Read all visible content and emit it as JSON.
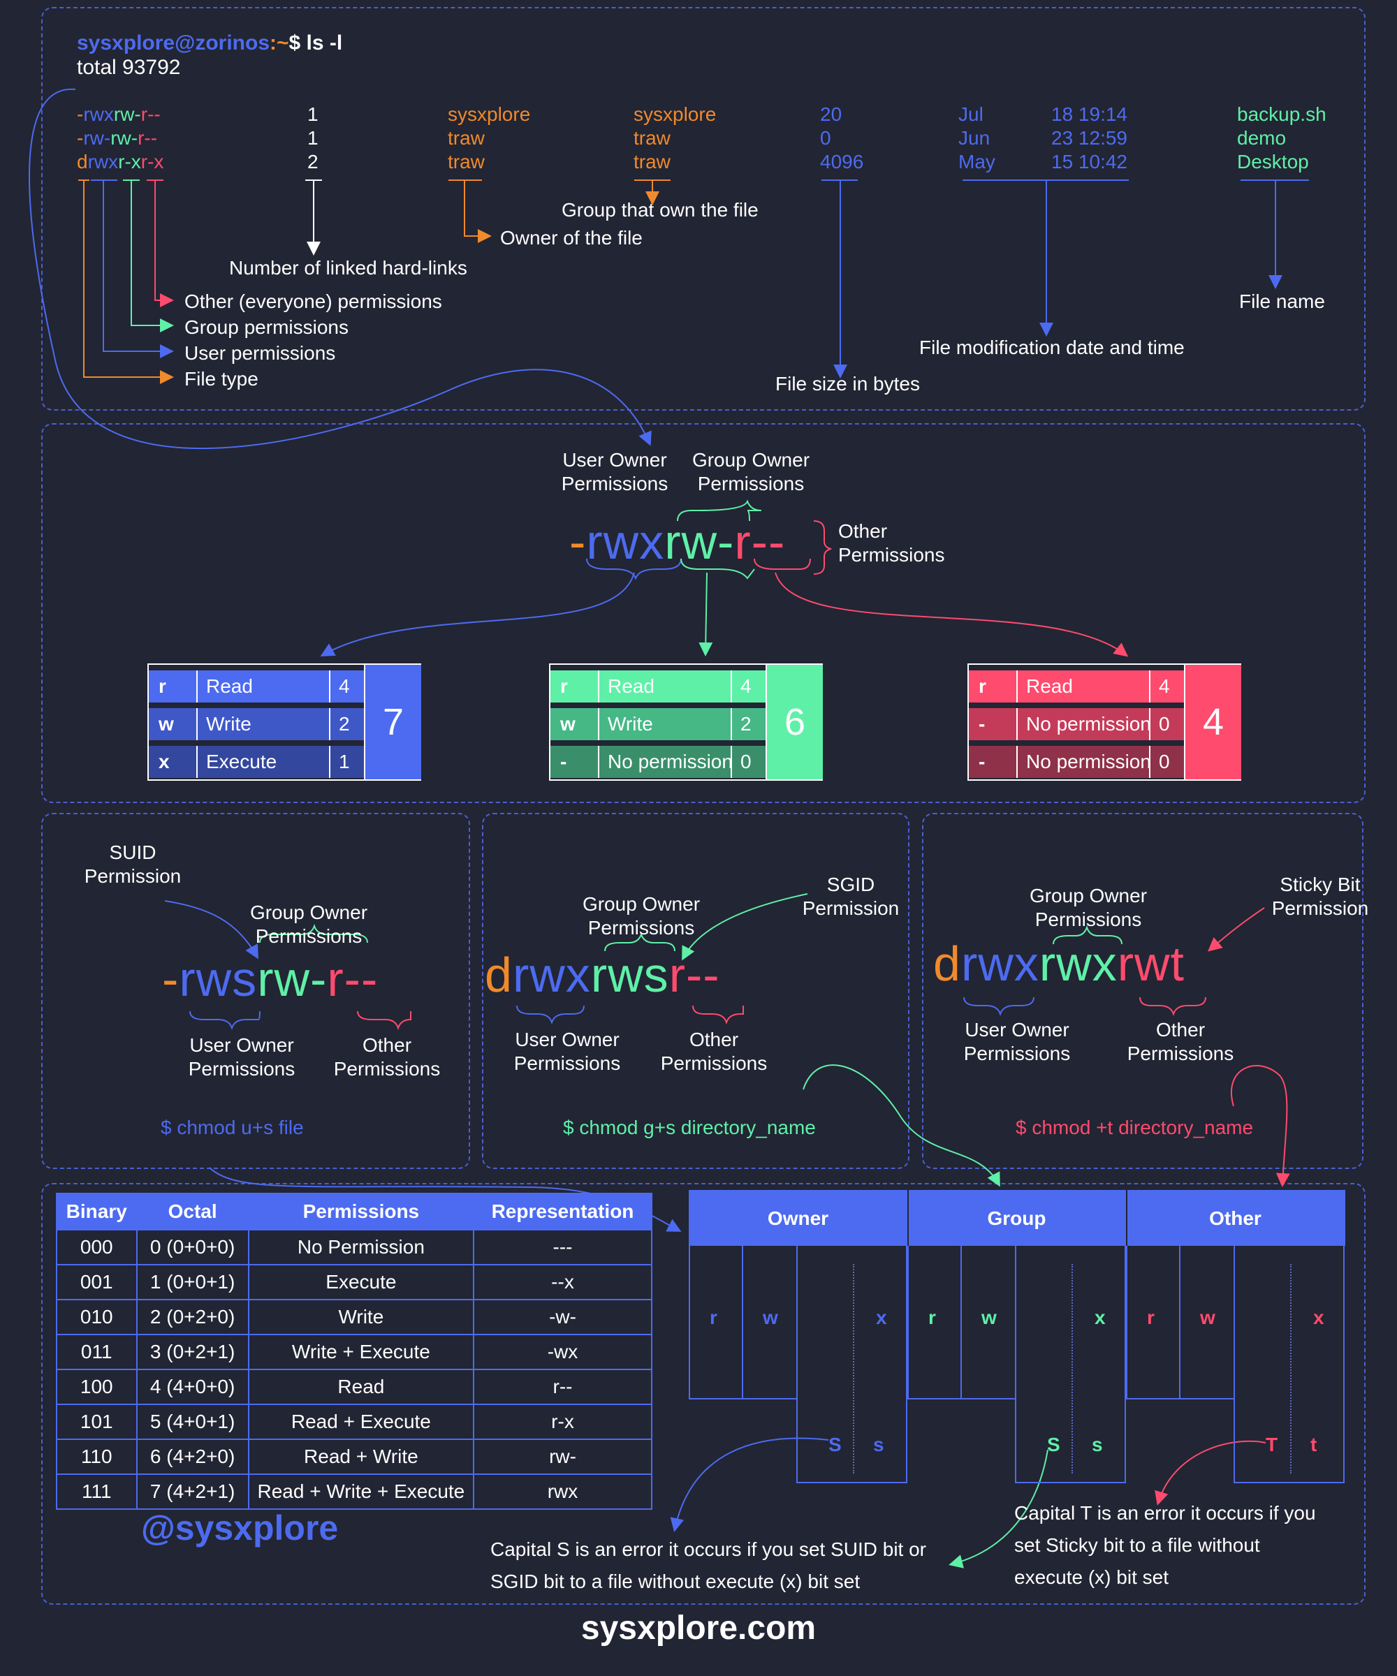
{
  "terminal": {
    "prompt_user": "sysxplore@zorinos",
    "prompt_sep": ":~",
    "prompt_cmd": "$ ls -l",
    "total": "total 93792",
    "rows": [
      {
        "type": "-",
        "user": "rwx",
        "group": "rw-",
        "other": "r--",
        "links": "1",
        "owner": "sysxplore",
        "grp": "sysxplore",
        "size": "20",
        "month": "Jul",
        "day_time": "18 19:14",
        "name": "backup.sh"
      },
      {
        "type": "-",
        "user": "rw-",
        "group": "rw-",
        "other": "r--",
        "links": "1",
        "owner": "traw",
        "grp": "traw",
        "size": "0",
        "month": "Jun",
        "day_time": "23 12:59",
        "name": "demo"
      },
      {
        "type": "d",
        "user": "rwx",
        "group": "r-x",
        "other": "r-x",
        "links": "2",
        "owner": "traw",
        "grp": "traw",
        "size": "4096",
        "month": "May",
        "day_time": "15 10:42",
        "name": "Desktop"
      }
    ],
    "annotations": {
      "group_owner": "Group that own the file",
      "owner": "Owner of the file",
      "hardlinks": "Number of linked hard-links",
      "other_perm": "Other (everyone) permissions",
      "group_perm": "Group permissions",
      "user_perm": "User permissions",
      "file_type": "File type",
      "file_name": "File name",
      "mod_date": "File modification date and time",
      "file_size": "File size in bytes"
    }
  },
  "breakdown": {
    "user_owner": [
      "User Owner",
      "Permissions"
    ],
    "group_owner": [
      "Group Owner",
      "Permissions"
    ],
    "other": [
      "Other",
      "Permissions"
    ],
    "perm_type": "-",
    "perm_user": "rwx",
    "perm_group": "rw-",
    "perm_other": "r--",
    "tables": [
      {
        "rows": [
          [
            "r",
            "Read",
            "4"
          ],
          [
            "w",
            "Write",
            "2"
          ],
          [
            "x",
            "Execute",
            "1"
          ]
        ],
        "total": "7"
      },
      {
        "rows": [
          [
            "r",
            "Read",
            "4"
          ],
          [
            "w",
            "Write",
            "2"
          ],
          [
            "-",
            "No permission",
            "0"
          ]
        ],
        "total": "6"
      },
      {
        "rows": [
          [
            "r",
            "Read",
            "4"
          ],
          [
            "-",
            "No permission",
            "0"
          ],
          [
            "-",
            "No permission",
            "0"
          ]
        ],
        "total": "4"
      }
    ]
  },
  "special": [
    {
      "label": [
        "SUID",
        "Permission"
      ],
      "group": [
        "Group Owner",
        "Permissions"
      ],
      "type": "-",
      "user": "rws",
      "grp": "rw-",
      "other": "r--",
      "user_lbl": [
        "User Owner",
        "Permissions"
      ],
      "other_lbl": [
        "Other",
        "Permissions"
      ],
      "cmd": "$ chmod u+s file"
    },
    {
      "label": [
        "SGID",
        "Permission"
      ],
      "group": [
        "Group Owner",
        "Permissions"
      ],
      "type": "d",
      "user": "rwx",
      "grp": "rws",
      "other": "r--",
      "user_lbl": [
        "User Owner",
        "Permissions"
      ],
      "other_lbl": [
        "Other",
        "Permissions"
      ],
      "cmd": "$ chmod g+s directory_name"
    },
    {
      "label": [
        "Sticky Bit",
        "Permission"
      ],
      "group": [
        "Group Owner",
        "Permissions"
      ],
      "type": "d",
      "user": "rwx",
      "grp": "rwx",
      "other": "rwt",
      "user_lbl": [
        "User Owner",
        "Permissions"
      ],
      "other_lbl": [
        "Other",
        "Permissions"
      ],
      "cmd": "$ chmod +t directory_name"
    }
  ],
  "bintable": {
    "headers": [
      "Binary",
      "Octal",
      "Permissions",
      "Representation"
    ],
    "rows": [
      [
        "000",
        "0 (0+0+0)",
        "No Permission",
        "---"
      ],
      [
        "001",
        "1 (0+0+1)",
        "Execute",
        "--x"
      ],
      [
        "010",
        "2 (0+2+0)",
        "Write",
        "-w-"
      ],
      [
        "011",
        "3 (0+2+1)",
        "Write + Execute",
        "-wx"
      ],
      [
        "100",
        "4 (4+0+0)",
        "Read",
        "r--"
      ],
      [
        "101",
        "5 (4+0+1)",
        "Read + Execute",
        "r-x"
      ],
      [
        "110",
        "6 (4+2+0)",
        "Read + Write",
        "rw-"
      ],
      [
        "111",
        "7 (4+2+1)",
        "Read + Write + Execute",
        "rwx"
      ]
    ]
  },
  "grid": {
    "headers": [
      "Owner",
      "Group",
      "Other"
    ],
    "owner": {
      "r": "r",
      "w": "w",
      "x": "x",
      "S": "S",
      "s": "s"
    },
    "group": {
      "r": "r",
      "w": "w",
      "x": "x",
      "S": "S",
      "s": "s"
    },
    "other": {
      "r": "r",
      "w": "w",
      "x": "x",
      "S": "T",
      "s": "t"
    }
  },
  "notes": {
    "capital_s": [
      "Capital S is an error it occurs if you set SUID bit or",
      "SGID bit to a file without execute (x) bit set"
    ],
    "capital_t": [
      "Capital T is an error it occurs if you",
      "set Sticky bit to a file without",
      "execute (x) bit set"
    ]
  },
  "brand": {
    "handle": "@sysxplore",
    "site": "sysxplore.com"
  },
  "colors": {
    "bg": "#222533",
    "blue": "#4d6bf0",
    "green": "#5ff0a8",
    "red": "#ff4b6e",
    "orange": "#f08a2c"
  }
}
